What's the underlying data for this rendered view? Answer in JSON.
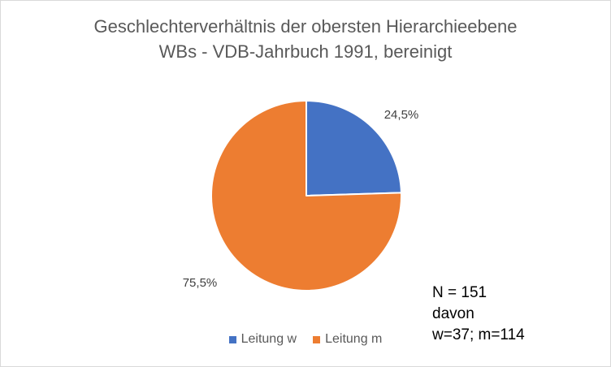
{
  "chart_data": {
    "type": "pie",
    "title_lines": [
      "Geschlechterverhältnis der obersten Hierarchieebene",
      "WBs - VDB-Jahrbuch 1991, bereinigt"
    ],
    "slices": [
      {
        "label": "Leitung w",
        "value": 24.5,
        "display": "24,5%",
        "color": "#4472c4"
      },
      {
        "label": "Leitung m",
        "value": 75.5,
        "display": "75,5%",
        "color": "#ed7d31"
      }
    ],
    "legend_position": "bottom",
    "annotation_lines": [
      "N = 151",
      "davon",
      "w=37; m=114"
    ]
  }
}
